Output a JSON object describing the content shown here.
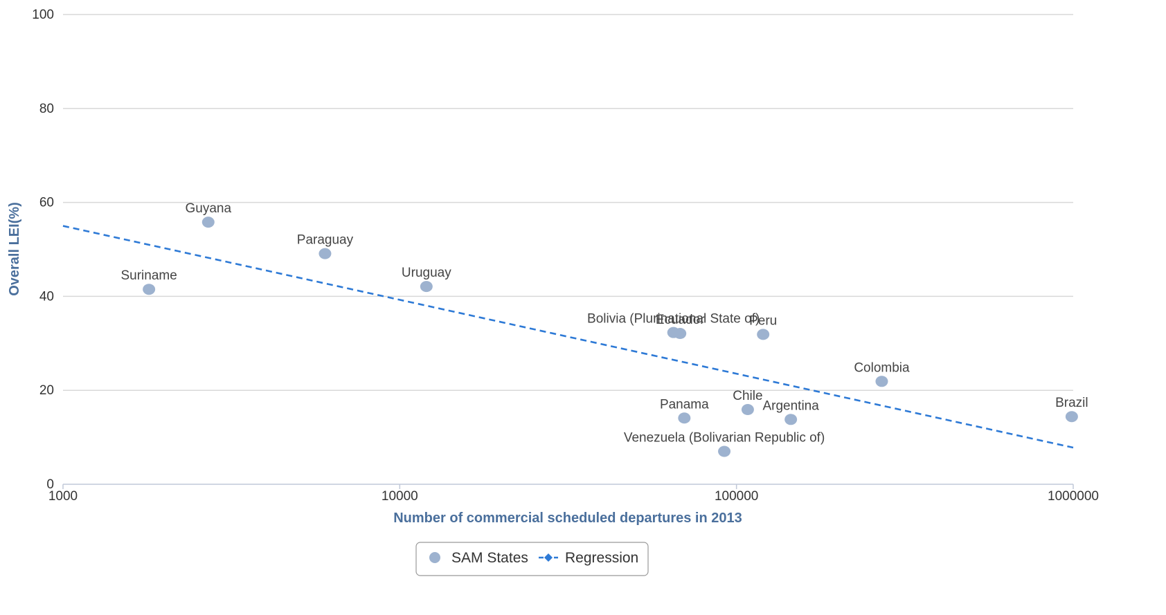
{
  "chart_data": {
    "type": "scatter",
    "title": "",
    "xlabel": "Number of commercial scheduled departures in 2013",
    "ylabel": "Overall LEI(%)",
    "xscale": "log",
    "xlim": [
      1000,
      1000000
    ],
    "ylim": [
      0,
      100
    ],
    "xticks": [
      1000,
      10000,
      100000,
      1000000
    ],
    "xtick_labels": [
      "1000",
      "10000",
      "100000",
      "1000000"
    ],
    "yticks": [
      0,
      20,
      40,
      60,
      80,
      100
    ],
    "ytick_labels": [
      "0",
      "20",
      "40",
      "60",
      "80",
      "100"
    ],
    "grid": true,
    "legend_position": "bottom-center",
    "colors": {
      "points": "#9db2cf",
      "regression": "#2e7ad6",
      "axis_title": "#4a6f9c"
    },
    "series": [
      {
        "name": "SAM States",
        "kind": "scatter",
        "points": [
          {
            "label": "Suriname",
            "x": 1800,
            "y": 41.5
          },
          {
            "label": "Guyana",
            "x": 2700,
            "y": 55.8
          },
          {
            "label": "Paraguay",
            "x": 6000,
            "y": 49.1
          },
          {
            "label": "Uruguay",
            "x": 12000,
            "y": 42.1
          },
          {
            "label": "Bolivia (Plurinational State of)",
            "x": 65000,
            "y": 32.3
          },
          {
            "label": "Ecuador",
            "x": 68000,
            "y": 32.1
          },
          {
            "label": "Peru",
            "x": 120000,
            "y": 31.9
          },
          {
            "label": "Colombia",
            "x": 270000,
            "y": 21.9
          },
          {
            "label": "Panama",
            "x": 70000,
            "y": 14.1
          },
          {
            "label": "Chile",
            "x": 108000,
            "y": 15.9
          },
          {
            "label": "Argentina",
            "x": 145000,
            "y": 13.8
          },
          {
            "label": "Venezuela (Bolivarian Republic of)",
            "x": 92000,
            "y": 7.0
          },
          {
            "label": "Brazil",
            "x": 990000,
            "y": 14.4
          }
        ]
      },
      {
        "name": "Regression",
        "kind": "line",
        "points": [
          {
            "x": 1000,
            "y": 55.0
          },
          {
            "x": 1000000,
            "y": 7.8
          }
        ]
      }
    ]
  }
}
